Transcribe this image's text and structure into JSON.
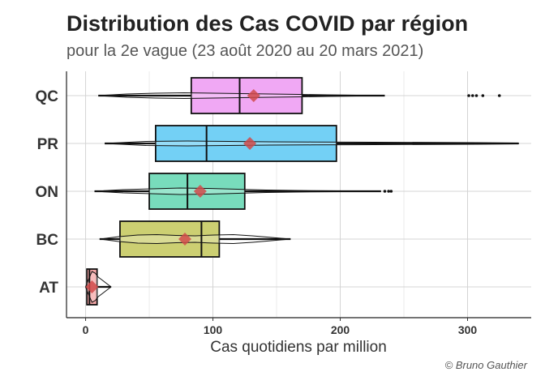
{
  "chart_data": {
    "type": "boxplot",
    "title": "Distribution des Cas COVID par région",
    "subtitle": "pour la 2e vague (23 août 2020 au 20 mars 2021)",
    "xlabel": "Cas quotidiens par million",
    "ylabel": "",
    "xlim": [
      -15,
      350
    ],
    "xticks": [
      0,
      100,
      200,
      300
    ],
    "grid": true,
    "caption": "© Bruno Gauthier",
    "categories": [
      "QC",
      "PR",
      "ON",
      "BC",
      "AT"
    ],
    "boxes": [
      {
        "region": "QC",
        "min": 10,
        "q1": 83,
        "median": 121,
        "q3": 170,
        "max": 235,
        "mean": 132,
        "outliers": [
          301,
          304,
          307,
          312,
          325
        ],
        "color": "#f0a8f4",
        "violin_halfwidth": [
          0,
          2,
          3,
          3.5,
          3,
          2.5,
          2,
          1.5,
          1,
          0.5,
          0
        ]
      },
      {
        "region": "PR",
        "min": 15,
        "q1": 55,
        "median": 95,
        "q3": 197,
        "max": 340,
        "mean": 129,
        "outliers": [],
        "color": "#73d0f5",
        "violin_halfwidth": [
          0,
          2.5,
          3,
          2.5,
          2,
          1.8,
          1.6,
          1.4,
          1.2,
          1,
          0.5
        ]
      },
      {
        "region": "ON",
        "min": 7,
        "q1": 50,
        "median": 80,
        "q3": 125,
        "max": 232,
        "mean": 90,
        "outliers": [
          235,
          238,
          240
        ],
        "color": "#78dcbc",
        "violin_halfwidth": [
          0,
          2,
          3,
          4,
          3.5,
          2.5,
          1.5,
          1,
          0.6,
          0.4,
          0
        ]
      },
      {
        "region": "BC",
        "min": 11,
        "q1": 27,
        "median": 91,
        "q3": 105,
        "max": 161,
        "mean": 78,
        "outliers": [],
        "color": "#cccf72",
        "violin_halfwidth": [
          0,
          3,
          5,
          5.5,
          4.5,
          4,
          5,
          5.5,
          4,
          2,
          0
        ]
      },
      {
        "region": "AT",
        "min": 0,
        "q1": 1,
        "median": 3,
        "q3": 9,
        "max": 20,
        "mean": 5,
        "outliers": [],
        "color": "#f4a7a7",
        "violin_halfwidth": [
          0,
          10,
          19,
          17,
          12,
          9,
          6,
          3,
          0
        ]
      }
    ],
    "mean_marker_color": "#d04a4a"
  }
}
